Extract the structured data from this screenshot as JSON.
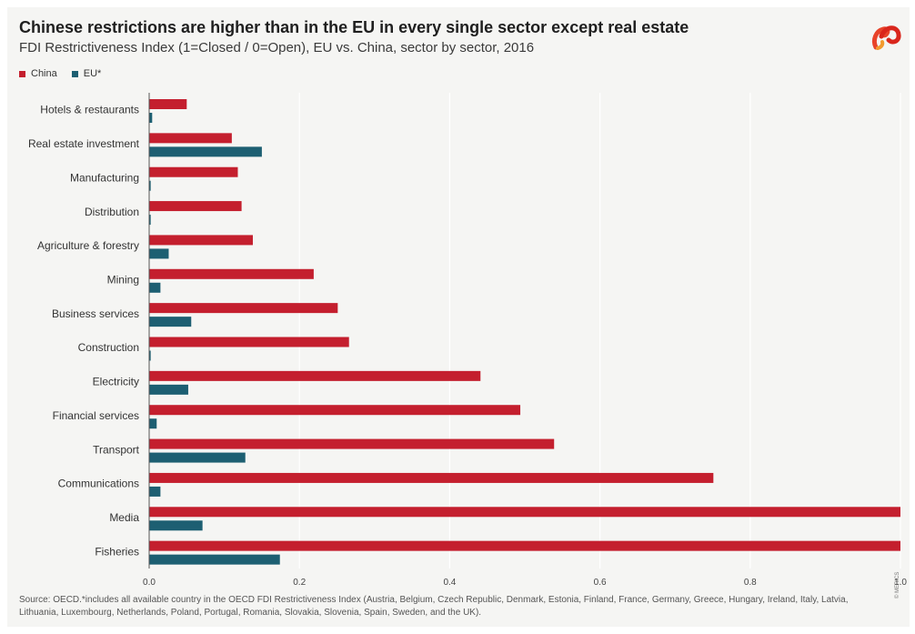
{
  "title": "Chinese restrictions are higher than in the EU in every single sector except real estate",
  "subtitle": "FDI Restrictiveness Index (1=Closed / 0=Open), EU vs. China, sector by sector, 2016",
  "source": "Source: OECD.*includes all available country in the OECD FDI Restrictiveness Index (Austria, Belgium, Czech Republic, Denmark, Estonia, Finland, France, Germany, Greece, Hungary, Ireland, Italy, Latvia, Lithuania, Luxembourg, Netherlands, Poland, Portugal, Romania, Slovakia, Slovenia, Spain, Sweden, and the UK).",
  "copyright": "© MERICS",
  "logo_icon": "merics-logo-icon",
  "colors": {
    "china": "#c41f2e",
    "eu": "#1d5f72",
    "grid": "#ffffff",
    "axis": "#555555"
  },
  "chart_data": {
    "type": "bar",
    "orientation": "horizontal",
    "categories": [
      "Hotels & restaurants",
      "Real estate investment",
      "Manufacturing",
      "Distribution",
      "Agriculture & forestry",
      "Mining",
      "Business services",
      "Construction",
      "Electricity",
      "Financial services",
      "Transport",
      "Communications",
      "Media",
      "Fisheries"
    ],
    "series": [
      {
        "name": "China",
        "values": [
          0.05,
          0.11,
          0.118,
          0.123,
          0.138,
          0.219,
          0.251,
          0.266,
          0.441,
          0.494,
          0.539,
          0.751,
          1.0,
          1.0
        ]
      },
      {
        "name": "EU*",
        "values": [
          0.004,
          0.15,
          0.002,
          0.002,
          0.026,
          0.015,
          0.056,
          0.002,
          0.052,
          0.01,
          0.128,
          0.015,
          0.071,
          0.174
        ]
      }
    ],
    "xlim": [
      0,
      1.0
    ],
    "xticks": [
      "0.0",
      "0.2",
      "0.4",
      "0.6",
      "0.8",
      "1.0"
    ],
    "xtick_values": [
      0,
      0.2,
      0.4,
      0.6,
      0.8,
      1.0
    ],
    "grid": true,
    "legend_position": "top-left"
  }
}
